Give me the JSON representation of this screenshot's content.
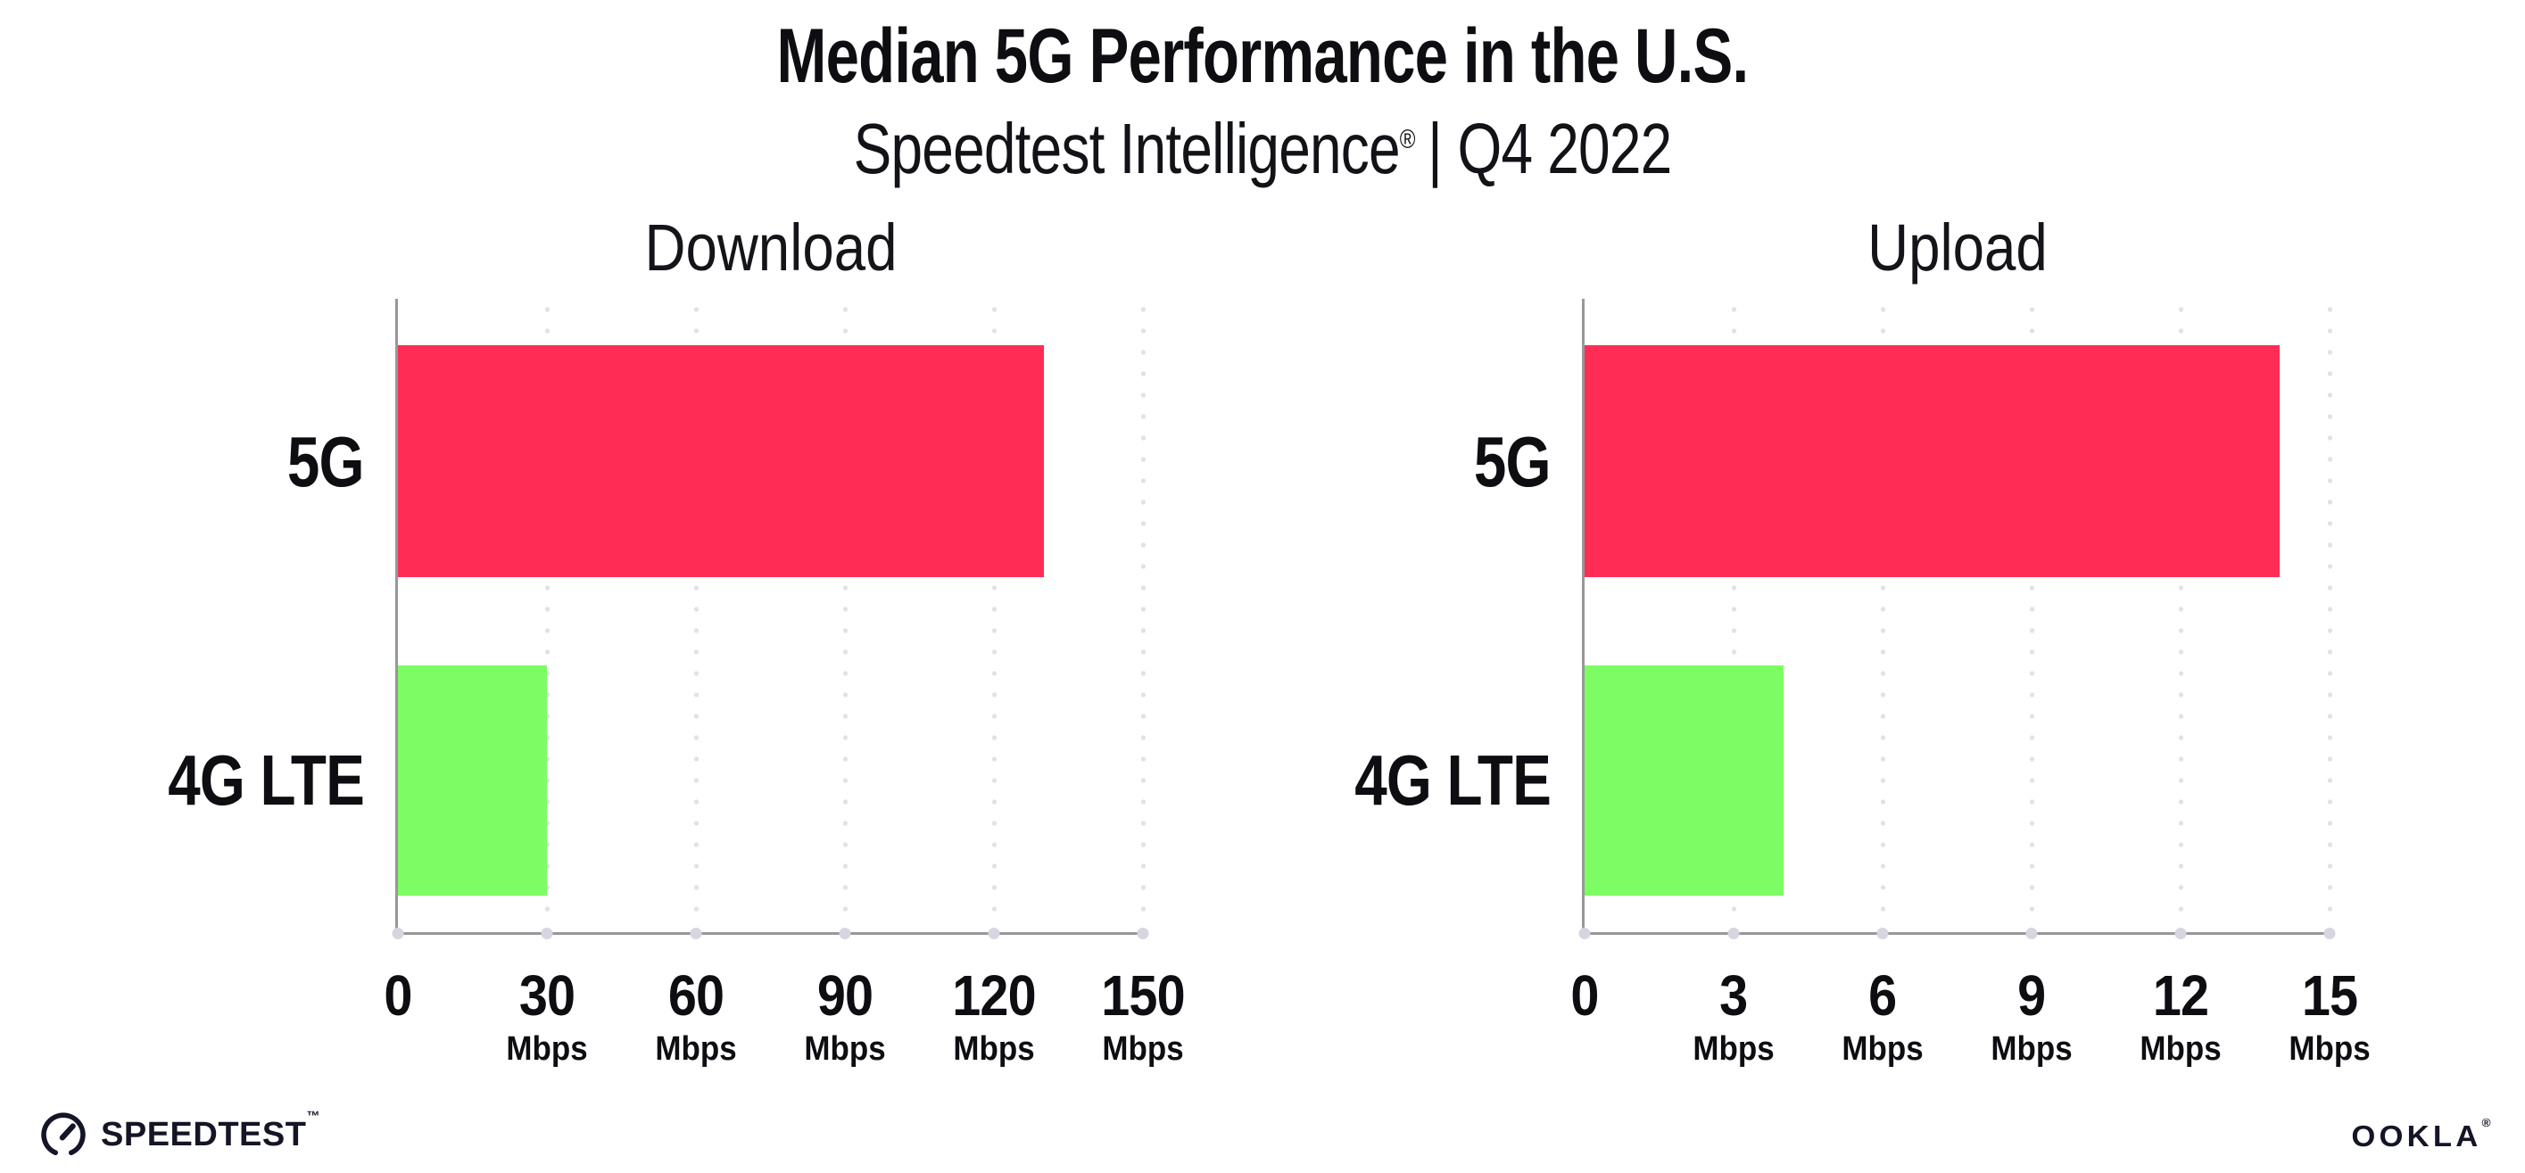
{
  "header": {
    "title": "Median 5G Performance in the U.S.",
    "subtitle_brand": "Speedtest Intelligence",
    "subtitle_reg": "®",
    "subtitle_sep": "|",
    "subtitle_period": "Q4 2022"
  },
  "chart_data": [
    {
      "type": "bar",
      "orientation": "horizontal",
      "title": "Download",
      "categories": [
        "5G",
        "4G LTE"
      ],
      "values": [
        130,
        30
      ],
      "unit": "Mbps",
      "xlim": [
        0,
        150
      ],
      "xticks": [
        0,
        30,
        60,
        90,
        120,
        150
      ],
      "tick_unit_label": "Mbps",
      "grid": "dotted-vertical",
      "legend": "none",
      "bar_colors": [
        "#FF2D55",
        "#7EFC64"
      ]
    },
    {
      "type": "bar",
      "orientation": "horizontal",
      "title": "Upload",
      "categories": [
        "5G",
        "4G LTE"
      ],
      "values": [
        14,
        4
      ],
      "unit": "Mbps",
      "xlim": [
        0,
        15
      ],
      "xticks": [
        0,
        3,
        6,
        9,
        12,
        15
      ],
      "tick_unit_label": "Mbps",
      "grid": "dotted-vertical",
      "legend": "none",
      "bar_colors": [
        "#FF2D55",
        "#7EFC64"
      ]
    }
  ],
  "footer": {
    "speedtest_label": "SPEEDTEST",
    "speedtest_tm": "™",
    "speedtest_icon": "speedometer-gauge-icon",
    "ookla_label": "OOKLA",
    "ookla_reg": "®"
  },
  "colors": {
    "bar_5g": "#FF2D55",
    "bar_4g_lte": "#7EFC64",
    "axis_line": "#97979c",
    "grid_dot": "#E0E1EA",
    "axis_tick_dot": "#D5D6E0",
    "text": "#0D0D12",
    "logo_ink": "#141526",
    "background": "#FFFFFF"
  }
}
